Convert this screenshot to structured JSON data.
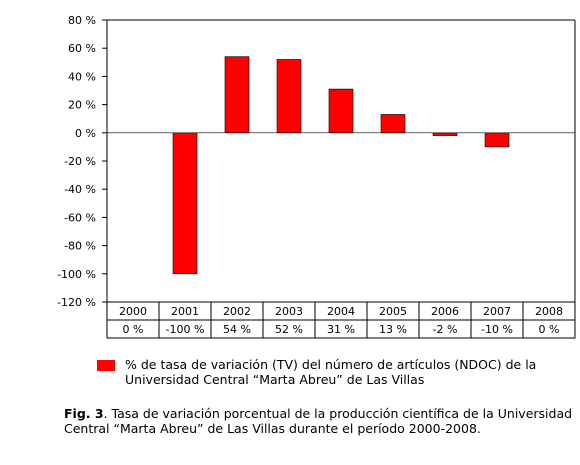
{
  "chart_data": {
    "type": "bar",
    "categories": [
      "2000",
      "2001",
      "2002",
      "2003",
      "2004",
      "2005",
      "2006",
      "2007",
      "2008"
    ],
    "series": [
      {
        "name": "% de tasa de variación (TV) del número de artículos (NDOC) de la Universidad Central “Marta Abreu” de Las Villas",
        "values": [
          0,
          -100,
          54,
          52,
          31,
          13,
          -2,
          -10,
          0
        ]
      }
    ],
    "value_labels": [
      "0 %",
      "-100 %",
      "54 %",
      "52 %",
      "31 %",
      "13 %",
      "-2 %",
      "-10 %",
      "0 %"
    ],
    "ylim": [
      -120,
      80
    ],
    "y_ticks": [
      80,
      60,
      40,
      20,
      0,
      -20,
      -40,
      -60,
      -80,
      -100,
      -120
    ],
    "y_tick_labels": [
      "80 %",
      "60 %",
      "40 %",
      "20 %",
      "0 %",
      "-20 %",
      "-40 %",
      "-60 %",
      "-80 %",
      "-100 %",
      "-120 %"
    ],
    "grid": false,
    "legend_position": "bottom",
    "bar_color": "#ff0000",
    "title": "",
    "xlabel": "",
    "ylabel": ""
  },
  "legend": {
    "text": "% de tasa de variación (TV) del número de artículos (NDOC) de la Universidad Central “Marta Abreu” de Las Villas"
  },
  "caption": {
    "label": "Fig. 3",
    "text": ". Tasa de variación porcentual de la producción científica de la Universidad Central “Marta Abreu” de Las Villas durante el período 2000-2008."
  }
}
